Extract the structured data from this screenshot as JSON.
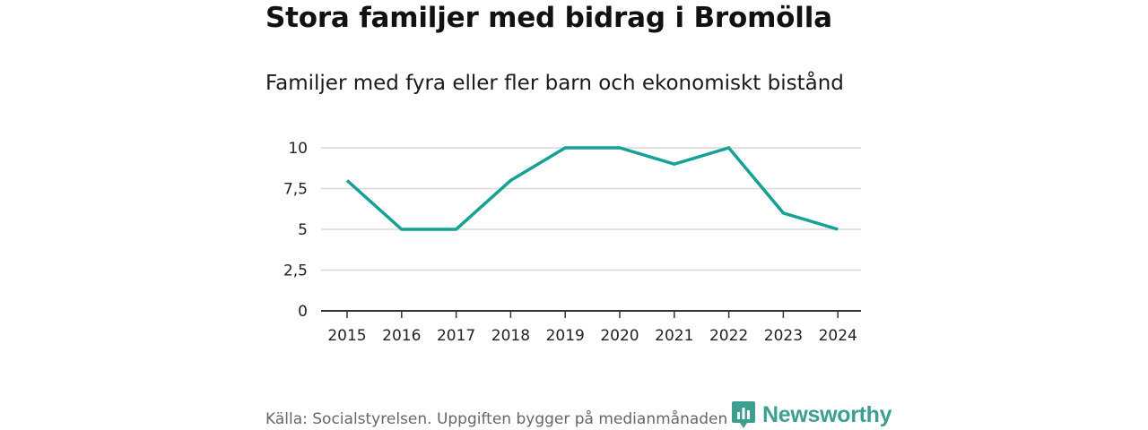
{
  "header": {
    "title": "Stora familjer med bidrag i Bromölla",
    "subtitle": "Familjer med fyra eller fler barn och ekonomiskt bistånd"
  },
  "footer": {
    "source": "Källa: Socialstyrelsen. Uppgiften bygger på medianmånaden för varje år"
  },
  "brand": {
    "name": "Newsworthy",
    "color": "#3e9f91",
    "icon": "bar-chart-icon"
  },
  "chart_data": {
    "type": "line",
    "title": "Stora familjer med bidrag i Bromölla",
    "subtitle": "Familjer med fyra eller fler barn och ekonomiskt bistånd",
    "xlabel": "",
    "ylabel": "",
    "x": [
      "2015",
      "2016",
      "2017",
      "2018",
      "2019",
      "2020",
      "2021",
      "2022",
      "2023",
      "2024"
    ],
    "series": [
      {
        "values": [
          8,
          5,
          5,
          8,
          10,
          10,
          9,
          10,
          6,
          5
        ],
        "color": "#16a096"
      }
    ],
    "ylim": [
      0,
      10
    ],
    "yticks": [
      0,
      2.5,
      5,
      7.5,
      10
    ],
    "ytick_labels": [
      "0",
      "2,5",
      "5",
      "7,5",
      "10"
    ],
    "grid": true,
    "legend": "none"
  }
}
